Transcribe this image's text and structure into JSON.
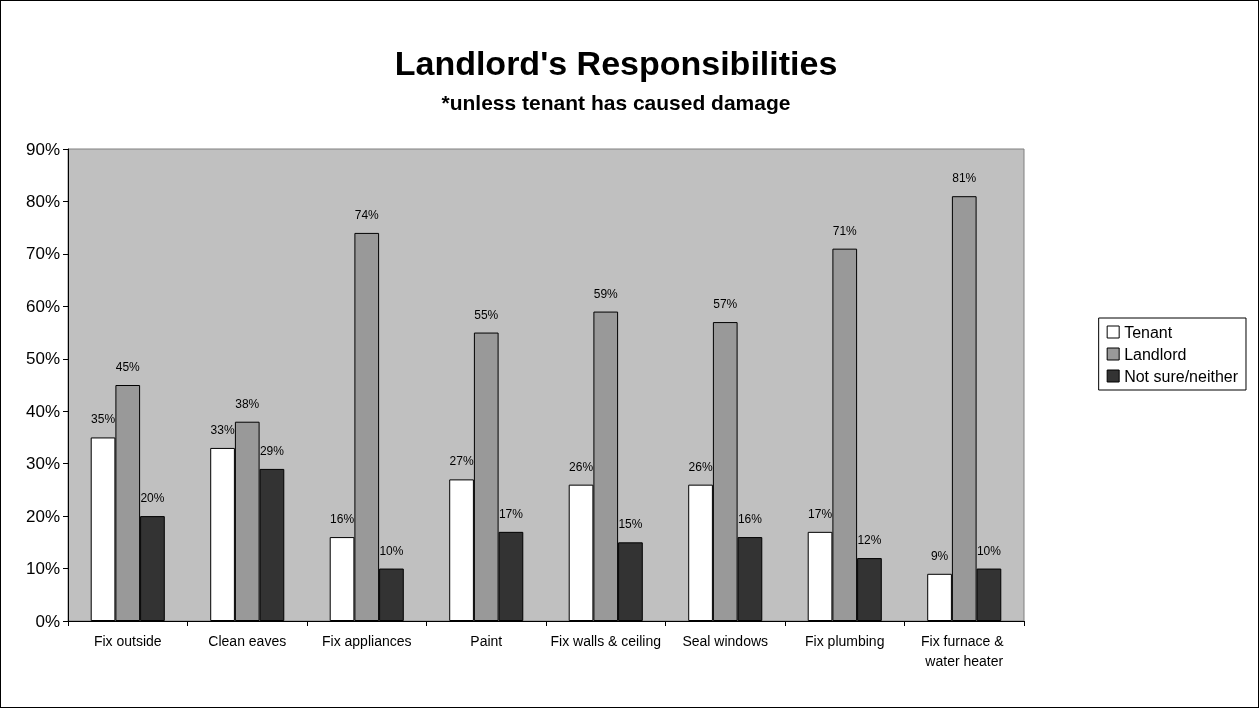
{
  "chart_data": {
    "type": "bar",
    "title": "Landlord's Responsibilities",
    "subtitle": "*unless tenant has caused damage",
    "categories": [
      "Fix outside",
      "Clean eaves",
      "Fix appliances",
      "Paint",
      "Fix walls & ceiling",
      "Seal windows",
      "Fix plumbing",
      "Fix furnace & water heater"
    ],
    "series": [
      {
        "name": "Tenant",
        "color": "#ffffff",
        "values": [
          35,
          33,
          16,
          27,
          26,
          26,
          17,
          9
        ],
        "value_labels": [
          "35%",
          "33%",
          "16%",
          "27%",
          "26%",
          "26%",
          "17%",
          "9%"
        ]
      },
      {
        "name": "Landlord",
        "color": "#999999",
        "values": [
          45,
          38,
          74,
          55,
          59,
          57,
          71,
          81
        ],
        "value_labels": [
          "45%",
          "38%",
          "74%",
          "55%",
          "59%",
          "57%",
          "71%",
          "81%"
        ]
      },
      {
        "name": "Not sure/neither",
        "color": "#333333",
        "values": [
          20,
          29,
          10,
          17,
          15,
          16,
          12,
          10
        ],
        "value_labels": [
          "20%",
          "29%",
          "10%",
          "17%",
          "15%",
          "16%",
          "12%",
          "10%"
        ]
      }
    ],
    "ylim": [
      0,
      90
    ],
    "yticks": [
      {
        "value": 0,
        "label": "0%"
      },
      {
        "value": 10,
        "label": "10%"
      },
      {
        "value": 20,
        "label": "20%"
      },
      {
        "value": 30,
        "label": "30%"
      },
      {
        "value": 40,
        "label": "40%"
      },
      {
        "value": 50,
        "label": "50%"
      },
      {
        "value": 60,
        "label": "60%"
      },
      {
        "value": 70,
        "label": "70%"
      },
      {
        "value": 80,
        "label": "80%"
      },
      {
        "value": 90,
        "label": "90%"
      }
    ],
    "grid": false,
    "legend": "right"
  }
}
